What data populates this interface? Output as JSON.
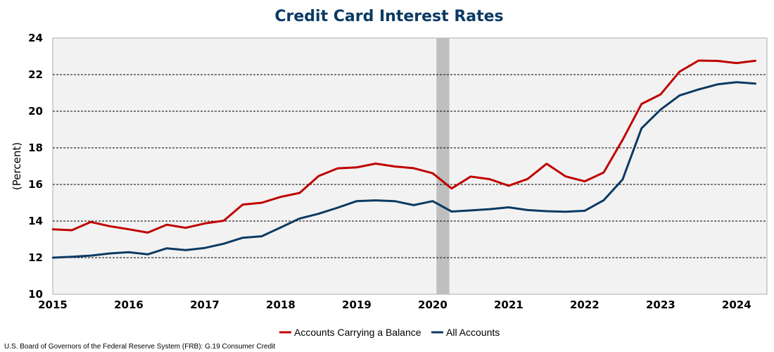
{
  "chart_data": {
    "type": "line",
    "title": "Credit Card Interest Rates",
    "ylabel": "(Percent)",
    "xlabel": "",
    "xlim": [
      2015.0,
      2024.4
    ],
    "ylim": [
      10,
      24
    ],
    "x_ticks": [
      2015,
      2016,
      2017,
      2018,
      2019,
      2020,
      2021,
      2022,
      2023,
      2024
    ],
    "y_ticks": [
      10,
      12,
      14,
      16,
      18,
      20,
      22,
      24
    ],
    "grid": "horizontal dashed",
    "recession_band": [
      2020.05,
      2020.22
    ],
    "legend_position": "bottom-center",
    "series": [
      {
        "name": "Accounts Carrying a Balance",
        "color": "#c00000",
        "x": [
          2015.0,
          2015.25,
          2015.5,
          2015.75,
          2016.0,
          2016.25,
          2016.5,
          2016.75,
          2017.0,
          2017.25,
          2017.5,
          2017.75,
          2018.0,
          2018.25,
          2018.5,
          2018.75,
          2019.0,
          2019.25,
          2019.5,
          2019.75,
          2020.0,
          2020.25,
          2020.5,
          2020.75,
          2021.0,
          2021.25,
          2021.5,
          2021.75,
          2022.0,
          2022.25,
          2022.5,
          2022.75,
          2023.0,
          2023.25,
          2023.5,
          2023.75,
          2024.0,
          2024.25
        ],
        "values": [
          13.55,
          13.5,
          13.95,
          13.72,
          13.55,
          13.37,
          13.8,
          13.63,
          13.87,
          14.02,
          14.9,
          15.0,
          15.32,
          15.54,
          16.46,
          16.88,
          16.93,
          17.14,
          16.98,
          16.89,
          16.61,
          15.78,
          16.43,
          16.29,
          15.93,
          16.3,
          17.13,
          16.44,
          16.17,
          16.65,
          18.43,
          20.4,
          20.92,
          22.16,
          22.77,
          22.75,
          22.63,
          22.76
        ]
      },
      {
        "name": "All Accounts",
        "color": "#0b3a63",
        "x": [
          2015.0,
          2015.25,
          2015.5,
          2015.75,
          2016.0,
          2016.25,
          2016.5,
          2016.75,
          2017.0,
          2017.25,
          2017.5,
          2017.75,
          2018.0,
          2018.25,
          2018.5,
          2018.75,
          2019.0,
          2019.25,
          2019.5,
          2019.75,
          2020.0,
          2020.25,
          2020.5,
          2020.75,
          2021.0,
          2021.25,
          2021.5,
          2021.75,
          2022.0,
          2022.25,
          2022.5,
          2022.75,
          2023.0,
          2023.25,
          2023.5,
          2023.75,
          2024.0,
          2024.25
        ],
        "values": [
          12.0,
          12.05,
          12.11,
          12.23,
          12.3,
          12.18,
          12.51,
          12.41,
          12.53,
          12.76,
          13.09,
          13.17,
          13.65,
          14.14,
          14.4,
          14.73,
          15.09,
          15.13,
          15.09,
          14.87,
          15.09,
          14.52,
          14.58,
          14.65,
          14.75,
          14.6,
          14.54,
          14.51,
          14.56,
          15.13,
          16.27,
          19.07,
          20.09,
          20.86,
          21.19,
          21.47,
          21.59,
          21.51
        ]
      }
    ]
  },
  "source_note": "U.S. Board of Governors of the Federal Reserve System (FRB): G.19 Consumer Credit",
  "colors": {
    "plot_background": "#f2f2f2",
    "recession": "#bfbfbf",
    "title": "#0b3a63"
  }
}
